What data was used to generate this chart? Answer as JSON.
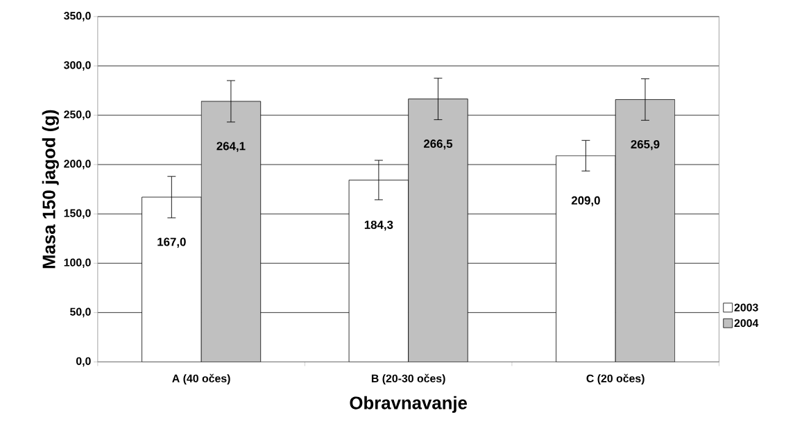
{
  "chart_data": {
    "type": "bar",
    "xlabel": "Obravnavanje",
    "ylabel": "Masa 150 jagod (g)",
    "categories": [
      "A (40 očes)",
      "B (20-30 očes)",
      "C (20 očes)"
    ],
    "series": [
      {
        "name": "2003",
        "color": "#ffffff",
        "values": [
          167.0,
          184.3,
          209.0
        ],
        "errors": [
          21,
          20,
          15.5
        ],
        "value_labels": [
          "167,0",
          "184,3",
          "209,0"
        ]
      },
      {
        "name": "2004",
        "color": "#c0c0c0",
        "values": [
          264.1,
          266.5,
          265.9
        ],
        "errors": [
          21,
          21,
          21
        ],
        "value_labels": [
          "264,1",
          "266,5",
          "265,9"
        ]
      }
    ],
    "ylim": [
      0,
      350
    ],
    "yticks": [
      {
        "value": 0,
        "label": "0,0"
      },
      {
        "value": 50,
        "label": "50,0"
      },
      {
        "value": 100,
        "label": "100,0"
      },
      {
        "value": 150,
        "label": "150,0"
      },
      {
        "value": 200,
        "label": "200,0"
      },
      {
        "value": 250,
        "label": "250,0"
      },
      {
        "value": 300,
        "label": "300,0"
      },
      {
        "value": 350,
        "label": "350,0"
      }
    ],
    "grid": "y",
    "legend": "right"
  }
}
